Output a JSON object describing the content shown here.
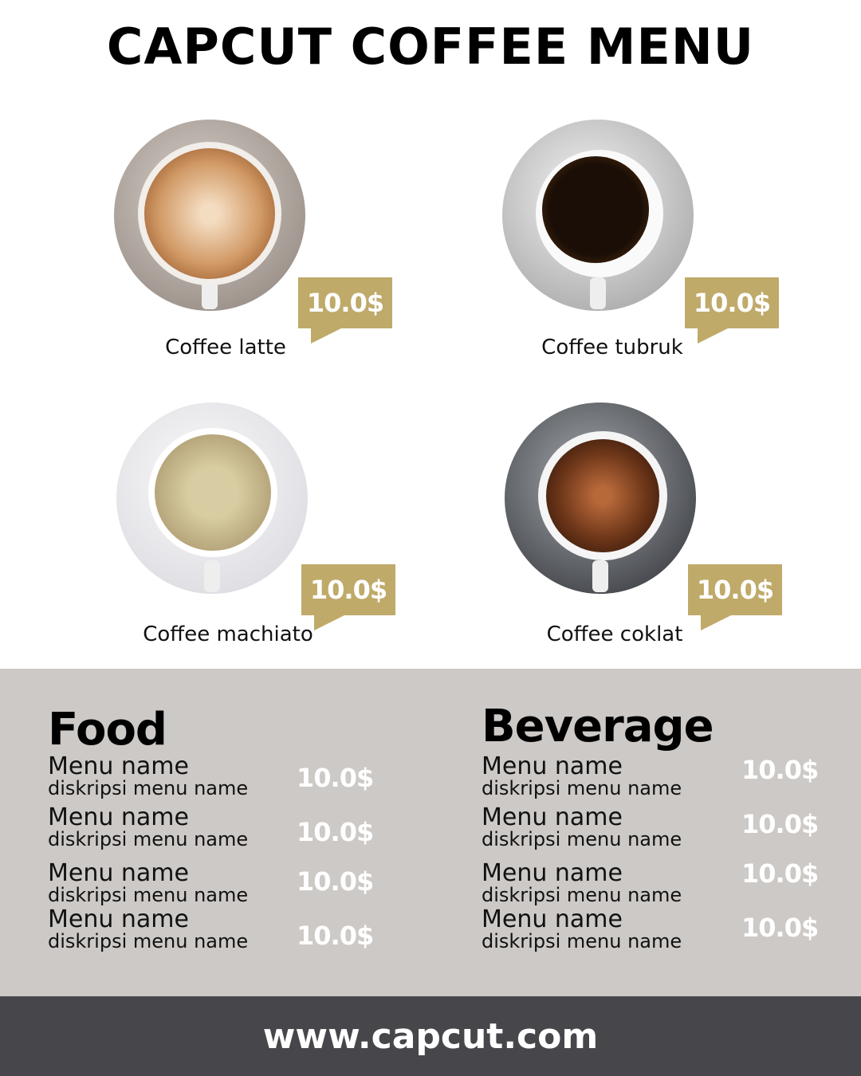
{
  "title": "CAPCUT COFFEE MENU",
  "colors": {
    "accent": "#bfaa6a",
    "panel": "#cdc9c6",
    "footer": "#47464b"
  },
  "coffees": [
    {
      "name": "Coffee latte",
      "price": "10.0$"
    },
    {
      "name": "Coffee tubruk",
      "price": "10.0$"
    },
    {
      "name": "Coffee machiato",
      "price": "10.0$"
    },
    {
      "name": "Coffee coklat",
      "price": "10.0$"
    }
  ],
  "food": {
    "title": "Food",
    "items": [
      {
        "name": "Menu name",
        "desc": "diskripsi menu name",
        "price": "10.0$"
      },
      {
        "name": "Menu name",
        "desc": "diskripsi menu name",
        "price": "10.0$"
      },
      {
        "name": "Menu name",
        "desc": "diskripsi menu name",
        "price": "10.0$"
      },
      {
        "name": "Menu name",
        "desc": "diskripsi menu name",
        "price": "10.0$"
      }
    ]
  },
  "beverage": {
    "title": "Beverage",
    "items": [
      {
        "name": "Menu name",
        "desc": "diskripsi menu name",
        "price": "10.0$"
      },
      {
        "name": "Menu name",
        "desc": "diskripsi menu name",
        "price": "10.0$"
      },
      {
        "name": "Menu name",
        "desc": "diskripsi menu name",
        "price": "10.0$"
      },
      {
        "name": "Menu name",
        "desc": "diskripsi menu name",
        "price": "10.0$"
      }
    ]
  },
  "footer": "www.capcut.com"
}
